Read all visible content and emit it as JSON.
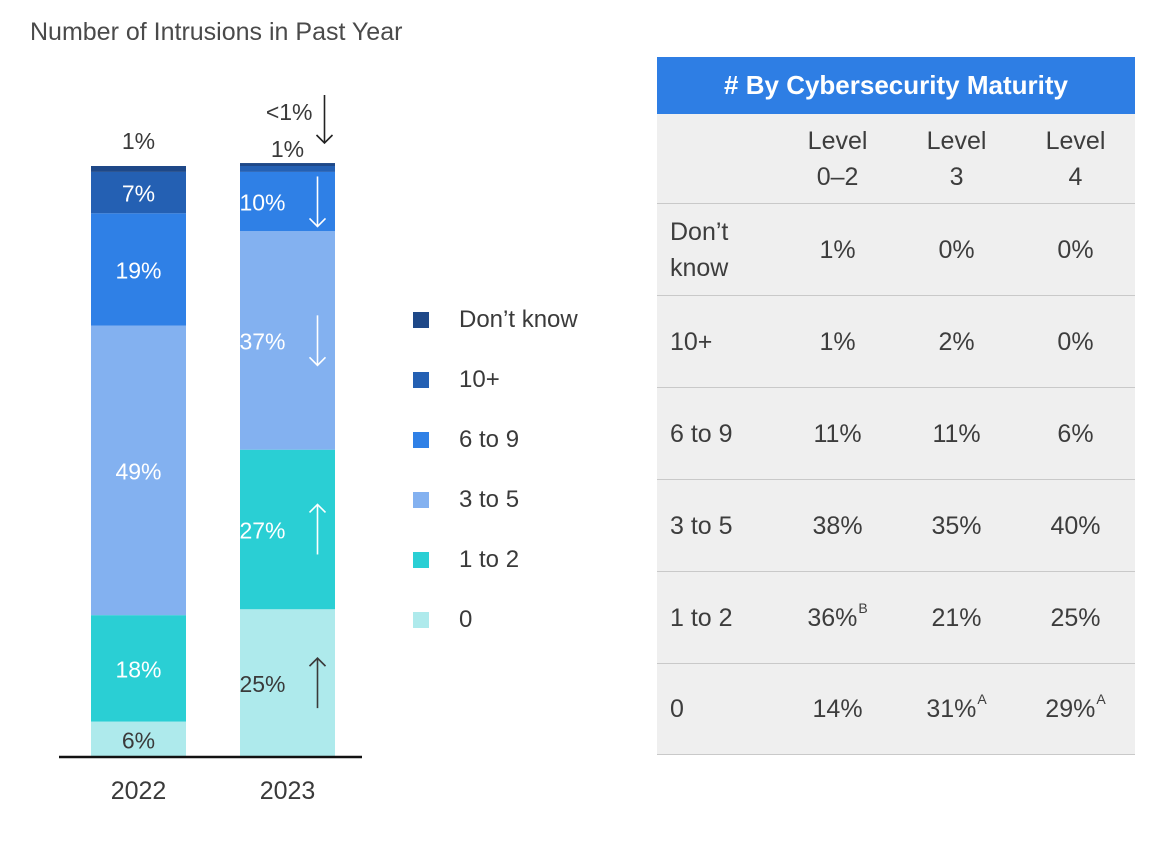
{
  "chart_data": {
    "type": "bar",
    "stacked": true,
    "title": "Number of Intrusions in Past Year",
    "categories": [
      "2022",
      "2023"
    ],
    "series": [
      {
        "name": "0",
        "color": "#aeeaec",
        "values": [
          6,
          25
        ],
        "labels": [
          "6%",
          "25%"
        ],
        "arrows": [
          null,
          "up"
        ],
        "labelColor": "#3a3a3a"
      },
      {
        "name": "1 to 2",
        "color": "#2acfd4",
        "values": [
          18,
          27
        ],
        "labels": [
          "18%",
          "27%"
        ],
        "arrows": [
          null,
          "up"
        ],
        "labelColor": "#ffffff"
      },
      {
        "name": "3 to 5",
        "color": "#83b1f0",
        "values": [
          49,
          37
        ],
        "labels": [
          "49%",
          "37%"
        ],
        "arrows": [
          null,
          "down"
        ],
        "labelColor": "#ffffff"
      },
      {
        "name": "6 to 9",
        "color": "#2f80e6",
        "values": [
          19,
          10
        ],
        "labels": [
          "19%",
          "10%"
        ],
        "arrows": [
          null,
          "down"
        ],
        "labelColor": "#ffffff"
      },
      {
        "name": "10+",
        "color": "#2460b3",
        "values": [
          7,
          1
        ],
        "labels": [
          "7%",
          "1%"
        ],
        "arrows": [
          null,
          null
        ],
        "labelColor": "#ffffff"
      },
      {
        "name": "Don’t know",
        "color": "#1e4888",
        "values": [
          1,
          0.5
        ],
        "labels": [
          "1%",
          "<1%"
        ],
        "arrows": [
          null,
          "down"
        ],
        "labelColor": "#3a3a3a"
      }
    ],
    "legend": [
      "Don’t know",
      "10+",
      "6 to 9",
      "3 to 5",
      "1 to 2",
      "0"
    ],
    "ylim": [
      0,
      100
    ]
  },
  "table": {
    "header": "# By Cybersecurity Maturity",
    "columns": [
      {
        "line1": "Level",
        "line2": "0–2"
      },
      {
        "line1": "Level",
        "line2": "3"
      },
      {
        "line1": "Level",
        "line2": "4"
      }
    ],
    "rows": [
      {
        "label": "Don’t know",
        "cells": [
          {
            "v": "1%",
            "sup": ""
          },
          {
            "v": "0%",
            "sup": ""
          },
          {
            "v": "0%",
            "sup": ""
          }
        ]
      },
      {
        "label": "10+",
        "cells": [
          {
            "v": "1%",
            "sup": ""
          },
          {
            "v": "2%",
            "sup": ""
          },
          {
            "v": "0%",
            "sup": ""
          }
        ]
      },
      {
        "label": "6 to 9",
        "cells": [
          {
            "v": "11%",
            "sup": ""
          },
          {
            "v": "11%",
            "sup": ""
          },
          {
            "v": "6%",
            "sup": ""
          }
        ]
      },
      {
        "label": "3 to 5",
        "cells": [
          {
            "v": "38%",
            "sup": ""
          },
          {
            "v": "35%",
            "sup": ""
          },
          {
            "v": "40%",
            "sup": ""
          }
        ]
      },
      {
        "label": "1 to 2",
        "cells": [
          {
            "v": "36%",
            "sup": "B"
          },
          {
            "v": "21%",
            "sup": ""
          },
          {
            "v": "25%",
            "sup": ""
          }
        ]
      },
      {
        "label": "0",
        "cells": [
          {
            "v": "14%",
            "sup": ""
          },
          {
            "v": "31%",
            "sup": "A"
          },
          {
            "v": "29%",
            "sup": "A"
          }
        ]
      }
    ]
  }
}
